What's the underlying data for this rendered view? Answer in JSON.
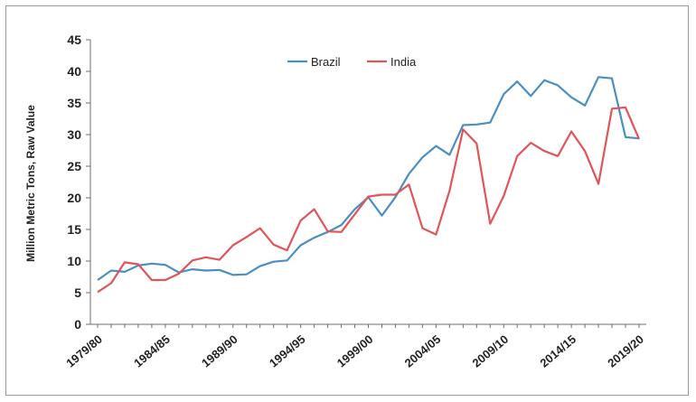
{
  "chart_data": {
    "type": "line",
    "title": "",
    "xlabel": "",
    "ylabel": "Million Metric Tons, Raw Value",
    "ylim": [
      0,
      45
    ],
    "y_ticks": [
      0,
      5,
      10,
      15,
      20,
      25,
      30,
      35,
      40,
      45
    ],
    "x_tick_labels": [
      "1979/80",
      "1984/85",
      "1989/90",
      "1994/95",
      "1999/00",
      "2004/05",
      "2009/10",
      "2014/15",
      "2019/20"
    ],
    "x_tick_index_step": 5,
    "grid": false,
    "legend_position": "top-center",
    "x": [
      "1979/80",
      "1980/81",
      "1981/82",
      "1982/83",
      "1983/84",
      "1984/85",
      "1985/86",
      "1986/87",
      "1987/88",
      "1988/89",
      "1989/90",
      "1990/91",
      "1991/92",
      "1992/93",
      "1993/94",
      "1994/95",
      "1995/96",
      "1996/97",
      "1997/98",
      "1998/99",
      "1999/00",
      "2000/01",
      "2001/02",
      "2002/03",
      "2003/04",
      "2004/05",
      "2005/06",
      "2006/07",
      "2007/08",
      "2008/09",
      "2009/10",
      "2010/11",
      "2011/12",
      "2012/13",
      "2013/14",
      "2014/15",
      "2015/16",
      "2016/17",
      "2017/18",
      "2018/19",
      "2019/20"
    ],
    "series": [
      {
        "name": "Brazil",
        "color": "#4a8fc2",
        "values": [
          7.0,
          8.5,
          8.3,
          9.3,
          9.6,
          9.4,
          8.2,
          8.7,
          8.5,
          8.6,
          7.8,
          7.9,
          9.2,
          9.9,
          10.1,
          12.5,
          13.7,
          14.6,
          15.7,
          18.2,
          20.1,
          17.2,
          20.1,
          23.8,
          26.4,
          28.2,
          26.8,
          31.5,
          31.6,
          31.9,
          36.4,
          38.4,
          36.1,
          38.6,
          37.8,
          35.9,
          34.6,
          39.1,
          38.9,
          29.6,
          29.4
        ]
      },
      {
        "name": "India",
        "color": "#e0545a",
        "values": [
          5.1,
          6.5,
          9.8,
          9.5,
          7.0,
          7.0,
          8.0,
          10.1,
          10.6,
          10.2,
          12.5,
          13.8,
          15.2,
          12.6,
          11.7,
          16.4,
          18.2,
          14.7,
          14.6,
          17.4,
          20.2,
          20.5,
          20.5,
          22.1,
          15.2,
          14.2,
          21.1,
          30.8,
          28.6,
          15.9,
          20.3,
          26.6,
          28.7,
          27.4,
          26.6,
          30.5,
          27.4,
          22.2,
          34.1,
          34.3,
          29.3
        ]
      }
    ]
  }
}
